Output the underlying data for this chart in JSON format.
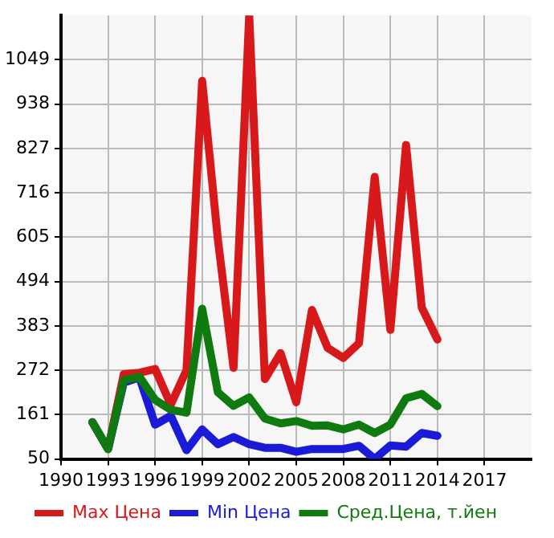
{
  "chart_data": {
    "type": "line",
    "x": [
      1992,
      1993,
      1994,
      1995,
      1996,
      1997,
      1998,
      1999,
      2000,
      2001,
      2002,
      2003,
      2004,
      2005,
      2006,
      2007,
      2008,
      2009,
      2010,
      2011,
      2012,
      2013,
      2014
    ],
    "series": [
      {
        "name": "Max Цена",
        "color": "#d7191c",
        "values": [
          142,
          75,
          262,
          266,
          275,
          186,
          272,
          996,
          600,
          278,
          1160,
          250,
          315,
          192,
          423,
          328,
          303,
          340,
          756,
          373,
          836,
          429,
          349
        ]
      },
      {
        "name": "Min Цена",
        "color": "#1a1ad7",
        "values": [
          142,
          75,
          241,
          254,
          136,
          158,
          72,
          124,
          87,
          105,
          87,
          78,
          78,
          68,
          75,
          75,
          75,
          83,
          50,
          84,
          81,
          115,
          108
        ]
      },
      {
        "name": "Сред.Цена, т.йен",
        "color": "#0f7a0f",
        "values": [
          142,
          75,
          247,
          256,
          198,
          173,
          166,
          426,
          217,
          183,
          204,
          151,
          139,
          145,
          133,
          134,
          124,
          136,
          115,
          136,
          202,
          213,
          182
        ]
      }
    ],
    "xlim": [
      1990,
      2020
    ],
    "xticks": [
      1990,
      1993,
      1996,
      1999,
      2002,
      2005,
      2008,
      2011,
      2014,
      2017
    ],
    "ylim": [
      50,
      1160
    ],
    "yticks": [
      50,
      161,
      272,
      383,
      494,
      605,
      716,
      827,
      938,
      1049
    ],
    "grid": true,
    "legend": "bottom",
    "marker": "none",
    "line_style": "solid"
  }
}
